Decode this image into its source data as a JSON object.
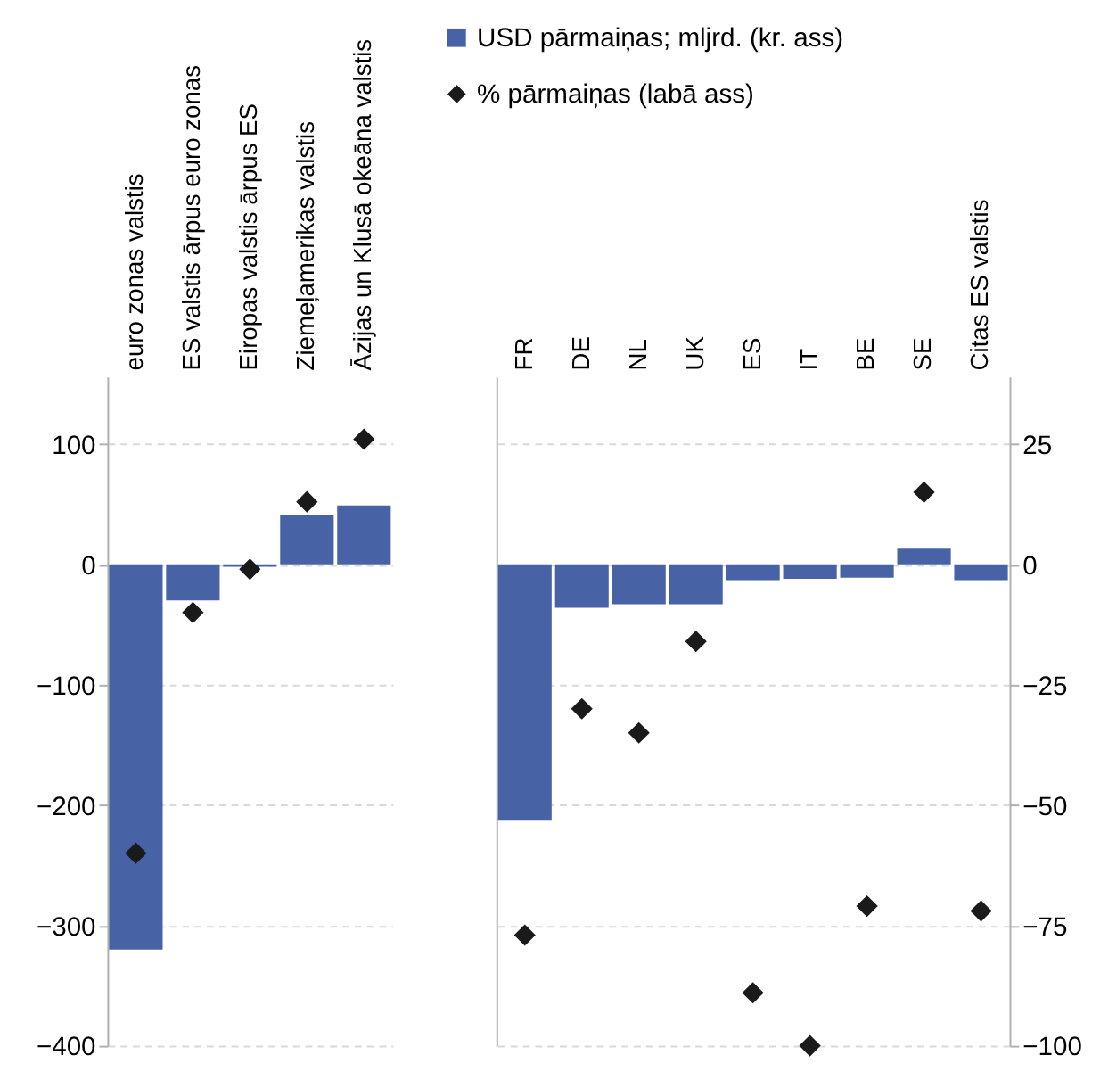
{
  "chart_data": [
    {
      "type": "bar",
      "categories": [
        "euro zonas valstis",
        "ES valstis ārpus euro zonas",
        "Eiropas valstis ārpus ES",
        "Ziemeļamerikas valstis",
        "Āzijas un Klusā okeāna valstis"
      ],
      "series": [
        {
          "type": "bar",
          "color": "#4763a6",
          "values": [
            -320,
            -30,
            -2,
            41,
            49
          ]
        },
        {
          "type": "scatter",
          "axis": "y2",
          "marker": "diamond",
          "color": "#1a1a1a",
          "values": [
            -60,
            -10,
            -1,
            13,
            26
          ]
        }
      ],
      "ylim": [
        -400,
        156
      ],
      "yticks": [
        -400,
        -300,
        -200,
        -100,
        0,
        100
      ],
      "y2lim": [
        -100,
        39
      ],
      "grid": true,
      "legend": false
    },
    {
      "type": "bar",
      "categories": [
        "FR",
        "DE",
        "NL",
        "UK",
        "ES",
        "IT",
        "BE",
        "SE",
        "Citas ES valstis"
      ],
      "series": [
        {
          "name": "USD pārmaiņas; mljrd. (kr. ass)",
          "type": "bar",
          "color": "#4763a6",
          "values": [
            -213,
            -36,
            -33,
            -33,
            -13,
            -12,
            -11,
            13,
            -13
          ]
        },
        {
          "name": "% pārmaiņas (labā ass)",
          "type": "scatter",
          "axis": "y2",
          "marker": "diamond",
          "color": "#1a1a1a",
          "values": [
            -77,
            -30,
            -35,
            -16,
            -89,
            -100,
            -71,
            15,
            -72
          ]
        }
      ],
      "ylim": [
        -400,
        156
      ],
      "y2lim": [
        -100,
        39
      ],
      "y2ticks": [
        -100,
        -75,
        -50,
        -25,
        0,
        25
      ],
      "grid": true,
      "legend": "top"
    }
  ]
}
